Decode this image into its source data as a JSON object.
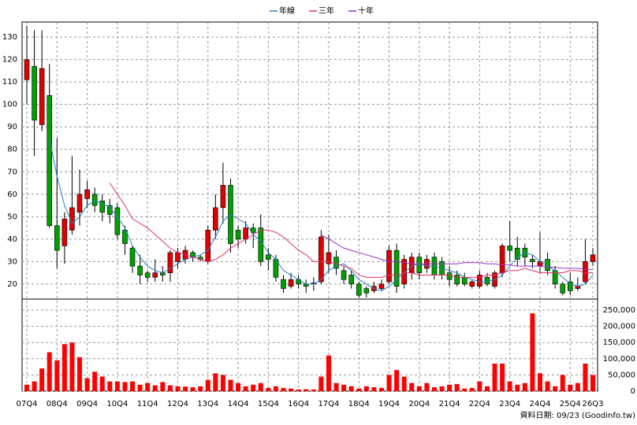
{
  "chart_data": {
    "type": "candlestick",
    "categories": [
      "07Q4",
      null,
      null,
      null,
      "08Q4",
      null,
      null,
      null,
      "09Q4",
      null,
      null,
      null,
      "10Q4",
      null,
      null,
      null,
      "11Q4",
      null,
      null,
      null,
      "12Q4",
      null,
      null,
      null,
      "13Q4",
      null,
      null,
      null,
      "14Q4",
      null,
      null,
      null,
      "15Q4",
      null,
      null,
      null,
      "16Q4",
      null,
      null,
      null,
      "17Q4",
      null,
      null,
      null,
      "18Q4",
      null,
      null,
      null,
      "19Q4",
      null,
      null,
      null,
      "20Q4",
      null,
      null,
      null,
      "21Q4",
      null,
      null,
      null,
      "22Q4",
      null,
      null,
      null,
      "23Q4",
      null,
      null,
      null,
      "24Q4",
      null,
      null,
      null,
      "25Q4",
      null,
      null,
      "26Q3"
    ],
    "open": [
      111,
      117,
      91,
      104,
      46,
      37,
      44,
      52,
      58,
      60,
      57,
      55,
      54,
      44,
      36,
      28,
      25,
      23,
      25,
      25,
      30,
      31,
      34,
      32,
      30,
      44,
      54,
      64,
      44,
      40,
      45,
      45,
      33,
      31,
      22,
      19,
      22,
      20,
      20,
      21,
      29,
      32,
      26,
      24,
      20,
      18,
      17,
      18,
      21,
      35,
      20,
      25,
      32,
      27,
      32,
      30,
      25,
      24,
      23,
      19,
      19,
      23,
      19,
      25,
      37,
      36,
      36,
      31,
      28,
      31,
      26,
      20,
      21,
      18,
      21,
      30
    ],
    "high": [
      135,
      133,
      133,
      118,
      85,
      52,
      77,
      71,
      66,
      63,
      60,
      58,
      56,
      46,
      37,
      33,
      26,
      31,
      28,
      35,
      36,
      37,
      35,
      33,
      46,
      60,
      74,
      67,
      46,
      48,
      47,
      51,
      36,
      33,
      24,
      25,
      24,
      22,
      23,
      44,
      42,
      35,
      28,
      26,
      21,
      19,
      21,
      22,
      37,
      38,
      33,
      34,
      34,
      33,
      34,
      32,
      28,
      26,
      25,
      22,
      26,
      25,
      26,
      38,
      48,
      41,
      38,
      33,
      43,
      34,
      28,
      21,
      25,
      23,
      40,
      36
    ],
    "low": [
      100,
      77,
      88,
      45,
      27,
      29,
      42,
      46,
      54,
      52,
      48,
      47,
      40,
      33,
      25,
      20,
      21,
      21,
      21,
      21,
      27,
      29,
      30,
      30,
      29,
      40,
      47,
      34,
      36,
      38,
      36,
      28,
      26,
      21,
      16,
      18,
      18,
      16,
      17,
      20,
      25,
      24,
      20,
      18,
      14,
      14,
      16,
      17,
      20,
      16,
      18,
      22,
      22,
      25,
      22,
      22,
      19,
      19,
      19,
      18,
      18,
      19,
      18,
      23,
      30,
      28,
      28,
      27,
      25,
      24,
      18,
      15,
      15,
      17,
      20,
      28
    ],
    "close": [
      120,
      93,
      116,
      46,
      35,
      49,
      54,
      60,
      62,
      55,
      52,
      51,
      42,
      38,
      28,
      24,
      23,
      25,
      24,
      34,
      34,
      35,
      32,
      31,
      44,
      54,
      64,
      38,
      40,
      45,
      43,
      30,
      31,
      23,
      18,
      22,
      20,
      19,
      20.5,
      41,
      34,
      27,
      22,
      20,
      15,
      16,
      19,
      20,
      35,
      19,
      31,
      32,
      25,
      31,
      24,
      24,
      22,
      20,
      20,
      21,
      24,
      20,
      25,
      37,
      35,
      31,
      32,
      30,
      30,
      26,
      20,
      16,
      17,
      19,
      30,
      33
    ],
    "up_color": "#e00000",
    "down_color": "#00a000",
    "series": [
      {
        "name": "年線",
        "color": "#2a7fc4",
        "values": [
          null,
          null,
          null,
          85,
          68,
          55,
          47,
          50,
          55,
          57,
          56,
          54,
          50,
          45,
          37,
          32,
          28,
          26,
          25,
          27,
          29,
          31,
          32,
          33,
          35,
          41,
          48,
          51,
          49,
          47,
          42,
          39,
          34,
          31,
          26,
          24,
          22,
          20,
          20,
          22,
          26,
          28,
          29,
          26,
          22,
          20,
          18,
          17,
          19,
          22,
          25,
          28,
          29,
          28,
          28,
          27,
          26,
          25,
          23,
          22,
          21,
          21,
          22,
          24,
          28,
          32,
          34,
          33,
          30,
          28,
          26,
          23,
          20,
          19,
          20,
          24
        ]
      },
      {
        "name": "三年",
        "color": "#e0306a",
        "values": [
          null,
          null,
          null,
          null,
          null,
          null,
          null,
          null,
          null,
          null,
          null,
          65,
          60,
          55,
          49,
          47,
          45,
          42,
          39,
          36,
          34,
          33,
          32,
          31,
          30,
          31,
          33,
          36,
          38,
          40,
          42,
          44,
          44,
          43,
          41,
          38,
          35,
          33,
          30,
          30,
          30,
          29,
          28,
          27,
          24,
          23,
          23,
          23,
          24,
          24,
          25,
          25,
          24,
          24,
          24,
          24,
          24,
          23,
          23,
          23,
          23,
          24,
          24,
          25,
          26,
          26,
          27,
          26,
          25,
          25,
          25,
          25,
          26,
          26,
          25,
          25
        ]
      },
      {
        "name": "十年",
        "color": "#9933cc",
        "values": [
          null,
          null,
          null,
          null,
          null,
          null,
          null,
          null,
          null,
          null,
          null,
          null,
          null,
          null,
          null,
          null,
          null,
          null,
          null,
          null,
          null,
          null,
          null,
          null,
          null,
          null,
          null,
          null,
          null,
          null,
          null,
          null,
          null,
          null,
          null,
          null,
          null,
          null,
          null,
          42,
          40,
          38,
          36,
          35,
          34,
          33,
          32,
          31,
          30,
          30,
          29.5,
          29,
          29,
          29,
          29,
          29,
          29,
          29,
          29.5,
          29.5,
          29.5,
          29,
          29,
          28.5,
          28.5,
          28,
          28,
          28,
          28,
          27.5,
          27.5,
          27,
          27,
          27,
          26.5,
          26.5
        ]
      }
    ],
    "ylim": [
      13.3,
      136.7
    ],
    "yticks": [
      20,
      30,
      40,
      50,
      60,
      70,
      80,
      90,
      100,
      110,
      120,
      130
    ],
    "grid": true,
    "volume": {
      "color": "#ff0000",
      "values": [
        20000,
        30000,
        70000,
        120000,
        95000,
        145000,
        150000,
        105000,
        40000,
        60000,
        45000,
        30000,
        30000,
        28000,
        30000,
        20000,
        25000,
        18000,
        28000,
        18000,
        15000,
        14000,
        12000,
        15000,
        35000,
        55000,
        50000,
        35000,
        25000,
        15000,
        20000,
        25000,
        10000,
        15000,
        10000,
        8000,
        5000,
        6000,
        5000,
        45000,
        110000,
        25000,
        20000,
        15000,
        8000,
        15000,
        12000,
        10000,
        50000,
        65000,
        45000,
        25000,
        15000,
        25000,
        12000,
        15000,
        20000,
        22000,
        8000,
        10000,
        30000,
        15000,
        85000,
        85000,
        30000,
        20000,
        25000,
        240000,
        55000,
        30000,
        15000,
        50000,
        20000,
        25000,
        85000,
        50000
      ],
      "ylim": [
        0,
        284000
      ],
      "yticks": [
        0,
        {
          "value": 50000,
          "label": "50,000"
        },
        {
          "value": 100000,
          "label": "100,000"
        },
        {
          "value": 150000,
          "label": "150,000"
        },
        {
          "value": 200000,
          "label": "200,000"
        },
        {
          "value": 250000,
          "label": "250,000"
        }
      ]
    },
    "source": "資料日期: 09/23 (Goodinfo.tw)"
  }
}
